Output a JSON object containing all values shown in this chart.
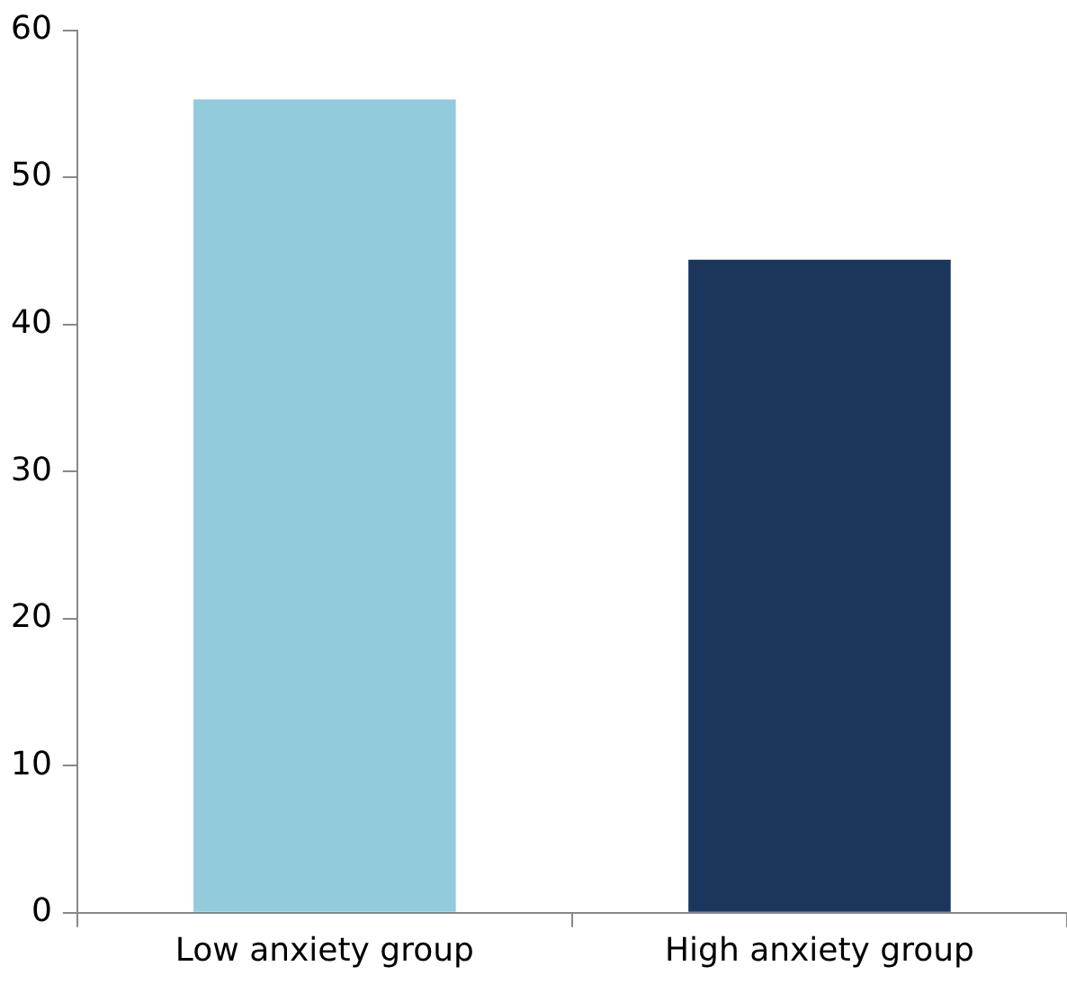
{
  "chart_data": {
    "type": "bar",
    "categories": [
      "Low anxiety group",
      "High anxiety group"
    ],
    "values": [
      55.3,
      44.4
    ],
    "colors": [
      "#92cbdc",
      "#1a365d"
    ],
    "ylim": [
      0,
      60
    ],
    "yticks": [
      0,
      10,
      20,
      30,
      40,
      50,
      60
    ],
    "grid": false,
    "legend": false
  }
}
